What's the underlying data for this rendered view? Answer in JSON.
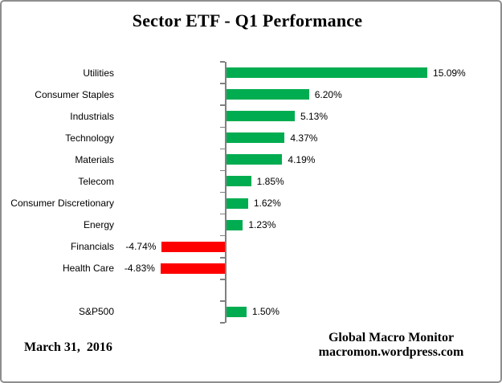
{
  "chart_data": {
    "type": "bar",
    "orientation": "horizontal",
    "title": "Sector ETF - Q1 Performance",
    "categories": [
      "Utilities",
      "Consumer Staples",
      "Industrials",
      "Technology",
      "Materials",
      "Telecom",
      "Consumer Discretionary",
      "Energy",
      "Financials",
      "Health Care",
      "",
      "S&P500"
    ],
    "values": [
      15.09,
      6.2,
      5.13,
      4.37,
      4.19,
      1.85,
      1.62,
      1.23,
      -4.74,
      -4.83,
      null,
      1.5
    ],
    "value_labels": [
      "15.09%",
      "6.20%",
      "5.13%",
      "4.37%",
      "4.19%",
      "1.85%",
      "1.62%",
      "1.23%",
      "-4.74%",
      "-4.83%",
      "",
      "1.50%"
    ],
    "xlabel": "",
    "ylabel": "",
    "xlim": [
      -8,
      21
    ],
    "grid": false,
    "legend": false,
    "colors": {
      "positive_bar": "#00AC50",
      "negative_bar": "#FF0000",
      "axis": "#808080",
      "frame_border": "#8E8E8E",
      "text": "#000000"
    }
  },
  "footer": {
    "date": "March 31,  2016",
    "attribution_line1": "Global Macro Monitor",
    "attribution_line2": "macromon.wordpress.com"
  }
}
